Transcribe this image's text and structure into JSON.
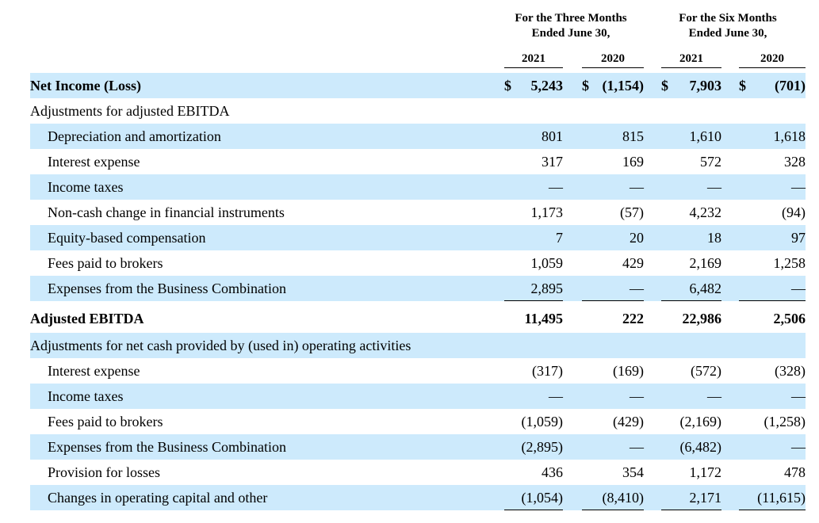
{
  "header": {
    "groups": [
      {
        "line1": "For the Three Months",
        "line2": "Ended June 30,"
      },
      {
        "line1": "For the Six Months",
        "line2": "Ended June 30,"
      }
    ],
    "years": [
      "2021",
      "2020",
      "2021",
      "2020"
    ]
  },
  "rows": [
    {
      "id": "net-income",
      "label": "Net Income (Loss)",
      "bold": true,
      "indent": 0,
      "shaded": true,
      "values": [
        "5,243",
        "(1,154)",
        "7,903",
        "(701)"
      ],
      "dollar": [
        true,
        true,
        true,
        true
      ],
      "underline": false
    },
    {
      "id": "adjustments-ebitda",
      "label": "Adjustments for adjusted EBITDA",
      "bold": false,
      "indent": 0,
      "shaded": false,
      "values": [
        "",
        "",
        "",
        ""
      ],
      "underline": false
    },
    {
      "id": "depreciation",
      "label": "Depreciation and amortization",
      "bold": false,
      "indent": 1,
      "shaded": true,
      "values": [
        "801",
        "815",
        "1,610",
        "1,618"
      ],
      "underline": false
    },
    {
      "id": "interest-expense",
      "label": "Interest expense",
      "bold": false,
      "indent": 1,
      "shaded": false,
      "values": [
        "317",
        "169",
        "572",
        "328"
      ],
      "underline": false
    },
    {
      "id": "income-taxes",
      "label": "Income taxes",
      "bold": false,
      "indent": 1,
      "shaded": true,
      "values": [
        "—",
        "—",
        "—",
        "—"
      ],
      "underline": false
    },
    {
      "id": "non-cash-change",
      "label": "Non-cash change in financial instruments",
      "bold": false,
      "indent": 1,
      "shaded": false,
      "values": [
        "1,173",
        "(57)",
        "4,232",
        "(94)"
      ],
      "underline": false
    },
    {
      "id": "equity-comp",
      "label": "Equity-based compensation",
      "bold": false,
      "indent": 1,
      "shaded": true,
      "values": [
        "7",
        "20",
        "18",
        "97"
      ],
      "underline": false
    },
    {
      "id": "fees-brokers",
      "label": "Fees paid to brokers",
      "bold": false,
      "indent": 1,
      "shaded": false,
      "values": [
        "1,059",
        "429",
        "2,169",
        "1,258"
      ],
      "underline": false
    },
    {
      "id": "expenses-business-combination",
      "label": "Expenses from the Business Combination",
      "bold": false,
      "indent": 1,
      "shaded": true,
      "values": [
        "2,895",
        "—",
        "6,482",
        "—"
      ],
      "underline": true
    },
    {
      "id": "adjusted-ebitda",
      "label": "Adjusted EBITDA",
      "bold": true,
      "indent": 0,
      "shaded": false,
      "values": [
        "11,495",
        "222",
        "22,986",
        "2,506"
      ],
      "underline": false
    },
    {
      "id": "adjustments-cash",
      "label": "Adjustments for net cash provided by (used in) operating activities",
      "bold": false,
      "indent": 0,
      "shaded": true,
      "values": [
        "",
        "",
        "",
        ""
      ],
      "underline": false
    },
    {
      "id": "interest-expense-2",
      "label": "Interest expense",
      "bold": false,
      "indent": 1,
      "shaded": false,
      "values": [
        "(317)",
        "(169)",
        "(572)",
        "(328)"
      ],
      "underline": false
    },
    {
      "id": "income-taxes-2",
      "label": "Income taxes",
      "bold": false,
      "indent": 1,
      "shaded": true,
      "values": [
        "—",
        "—",
        "—",
        "—"
      ],
      "underline": false
    },
    {
      "id": "fees-brokers-2",
      "label": "Fees paid to brokers",
      "bold": false,
      "indent": 1,
      "shaded": false,
      "values": [
        "(1,059)",
        "(429)",
        "(2,169)",
        "(1,258)"
      ],
      "underline": false
    },
    {
      "id": "expenses-business-combination-2",
      "label": "Expenses from the Business Combination",
      "bold": false,
      "indent": 1,
      "shaded": true,
      "values": [
        "(2,895)",
        "—",
        "(6,482)",
        "—"
      ],
      "underline": false
    },
    {
      "id": "provision-losses",
      "label": "Provision for losses",
      "bold": false,
      "indent": 1,
      "shaded": false,
      "values": [
        "436",
        "354",
        "1,172",
        "478"
      ],
      "underline": false
    },
    {
      "id": "changes-operating-capital",
      "label": "Changes in operating capital and other",
      "bold": false,
      "indent": 1,
      "shaded": true,
      "values": [
        "(1,054)",
        "(8,410)",
        "2,171",
        "(11,615)"
      ],
      "underline": true
    }
  ],
  "currency_symbol": "$",
  "colors": {
    "shade": "#cdeafc",
    "text": "#000000"
  }
}
